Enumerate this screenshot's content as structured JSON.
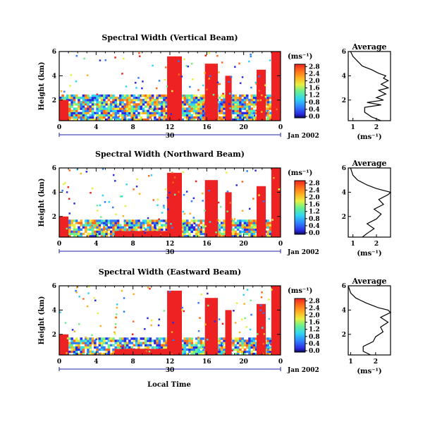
{
  "chart_data": {
    "type": "heatmap",
    "xaxis_label": "Local Time",
    "date_label": "30",
    "month_label": "Jan 2002",
    "colorbar": {
      "unit": "(ms⁻¹)",
      "ticks": [
        "0.0",
        "0.4",
        "0.8",
        "1.2",
        "1.6",
        "2.0",
        "2.4",
        "2.8"
      ]
    },
    "average_title": "Average",
    "average_unit": "(ms⁻¹)",
    "x_ticks": [
      "0",
      "4",
      "8",
      "12",
      "16",
      "20",
      "0"
    ],
    "y_ticks": [
      "2",
      "4",
      "6"
    ],
    "xlim_hours": [
      0,
      24
    ],
    "ylim_km": [
      0.3,
      6.0
    ],
    "panels": [
      {
        "title": "Spectral Width (Vertical Beam)",
        "avg_x_ticks": [
          "1",
          "2"
        ],
        "avg_xlim": [
          0.8,
          2.6
        ],
        "average_profile": {
          "height_km": [
            0.3,
            0.6,
            1.0,
            1.4,
            1.6,
            1.8,
            2.0,
            2.2,
            2.5,
            2.8,
            3.0,
            3.3,
            3.6,
            3.8,
            4.0,
            4.2,
            4.5,
            4.8,
            5.2,
            5.6,
            6.0
          ],
          "width": [
            2.2,
            1.8,
            1.5,
            1.5,
            2.2,
            1.6,
            2.3,
            2.0,
            2.4,
            2.1,
            2.5,
            2.2,
            2.5,
            2.3,
            2.4,
            2.1,
            1.8,
            1.4,
            1.2,
            1.0,
            0.9
          ]
        }
      },
      {
        "title": "Spectral Width (Northward Beam)",
        "avg_x_ticks": [
          "1",
          "2"
        ],
        "avg_xlim": [
          0.8,
          2.6
        ],
        "average_profile": {
          "height_km": [
            0.3,
            0.6,
            1.0,
            1.4,
            1.8,
            2.2,
            2.6,
            3.0,
            3.4,
            3.8,
            4.0,
            4.3,
            4.6,
            5.0,
            5.4,
            6.0
          ],
          "width": [
            1.4,
            1.6,
            1.9,
            1.6,
            2.0,
            2.2,
            1.9,
            2.3,
            2.1,
            2.5,
            2.6,
            2.0,
            1.6,
            1.2,
            1.0,
            0.9
          ]
        }
      },
      {
        "title": "Spectral Width (Eastward Beam)",
        "avg_x_ticks": [
          "1",
          "2"
        ],
        "avg_xlim": [
          0.9,
          2.6
        ],
        "average_profile": {
          "height_km": [
            0.3,
            0.6,
            1.0,
            1.4,
            1.8,
            2.2,
            2.6,
            3.0,
            3.4,
            3.8,
            4.0,
            4.2,
            4.6,
            5.0,
            5.4,
            6.0
          ],
          "width": [
            1.8,
            1.5,
            1.5,
            1.9,
            2.0,
            2.3,
            2.2,
            2.5,
            2.2,
            2.6,
            2.5,
            2.1,
            1.6,
            1.2,
            1.0,
            0.9
          ]
        }
      }
    ]
  }
}
